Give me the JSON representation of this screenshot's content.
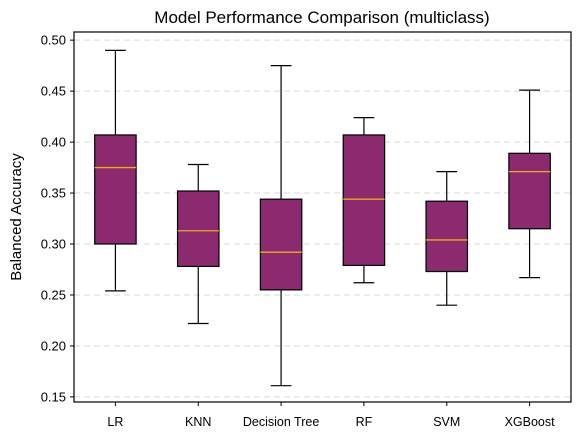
{
  "chart_data": {
    "type": "boxplot",
    "title": "Model Performance Comparison (multiclass)",
    "xlabel": "",
    "ylabel": "Balanced Accuracy",
    "ylim": [
      0.145,
      0.508
    ],
    "yticks": [
      0.15,
      0.2,
      0.25,
      0.3,
      0.35,
      0.4,
      0.45,
      0.5
    ],
    "ytick_labels": [
      "0.15",
      "0.20",
      "0.25",
      "0.30",
      "0.35",
      "0.40",
      "0.45",
      "0.50"
    ],
    "grid": "horizontal dashed",
    "colors": {
      "box_fill": "#8b2a6e",
      "box_edge": "#000000",
      "median": "#f5a623",
      "whisker": "#000000",
      "grid": "#d9d9d9"
    },
    "categories": [
      "LR",
      "KNN",
      "Decision Tree",
      "RF",
      "SVM",
      "XGBoost"
    ],
    "boxes": [
      {
        "label": "LR",
        "whisker_low": 0.254,
        "q1": 0.3,
        "median": 0.375,
        "q3": 0.407,
        "whisker_high": 0.49
      },
      {
        "label": "KNN",
        "whisker_low": 0.222,
        "q1": 0.278,
        "median": 0.313,
        "q3": 0.352,
        "whisker_high": 0.378
      },
      {
        "label": "Decision Tree",
        "whisker_low": 0.161,
        "q1": 0.255,
        "median": 0.292,
        "q3": 0.344,
        "whisker_high": 0.475
      },
      {
        "label": "RF",
        "whisker_low": 0.262,
        "q1": 0.279,
        "median": 0.344,
        "q3": 0.407,
        "whisker_high": 0.424
      },
      {
        "label": "SVM",
        "whisker_low": 0.24,
        "q1": 0.273,
        "median": 0.304,
        "q3": 0.342,
        "whisker_high": 0.371
      },
      {
        "label": "XGBoost",
        "whisker_low": 0.267,
        "q1": 0.315,
        "median": 0.371,
        "q3": 0.389,
        "whisker_high": 0.451
      }
    ]
  }
}
